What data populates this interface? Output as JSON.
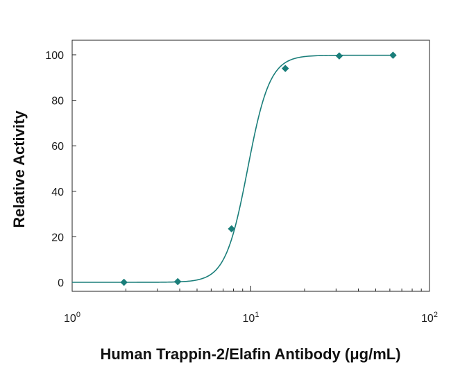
{
  "chart_data": {
    "type": "scatter",
    "title": "",
    "xlabel": "Human Trappin-2/Elafin Antibody (μg/mL)",
    "ylabel": "Relative Activity",
    "x_scale": "log",
    "xlim": [
      1,
      100
    ],
    "ylim": [
      0,
      100
    ],
    "y_ticks": [
      "0",
      "20",
      "40",
      "60",
      "80",
      "100"
    ],
    "x_ticks": [
      {
        "base": "10",
        "exp": "0"
      },
      {
        "base": "10",
        "exp": "1"
      },
      {
        "base": "10",
        "exp": "2"
      }
    ],
    "grid": false,
    "legend": "none",
    "series": [
      {
        "x": [
          1.95,
          3.9,
          7.8,
          15.6,
          31.25,
          62.5
        ],
        "y": [
          0,
          0.3,
          23.5,
          94,
          99.5,
          99.8
        ]
      }
    ],
    "fit_curve": {
      "model": "4PL",
      "bottom": 0,
      "top": 99.8,
      "ec50": 9.6,
      "hill": 7
    },
    "colors": {
      "series": "#1a7e7a",
      "axis": "#222222"
    }
  }
}
